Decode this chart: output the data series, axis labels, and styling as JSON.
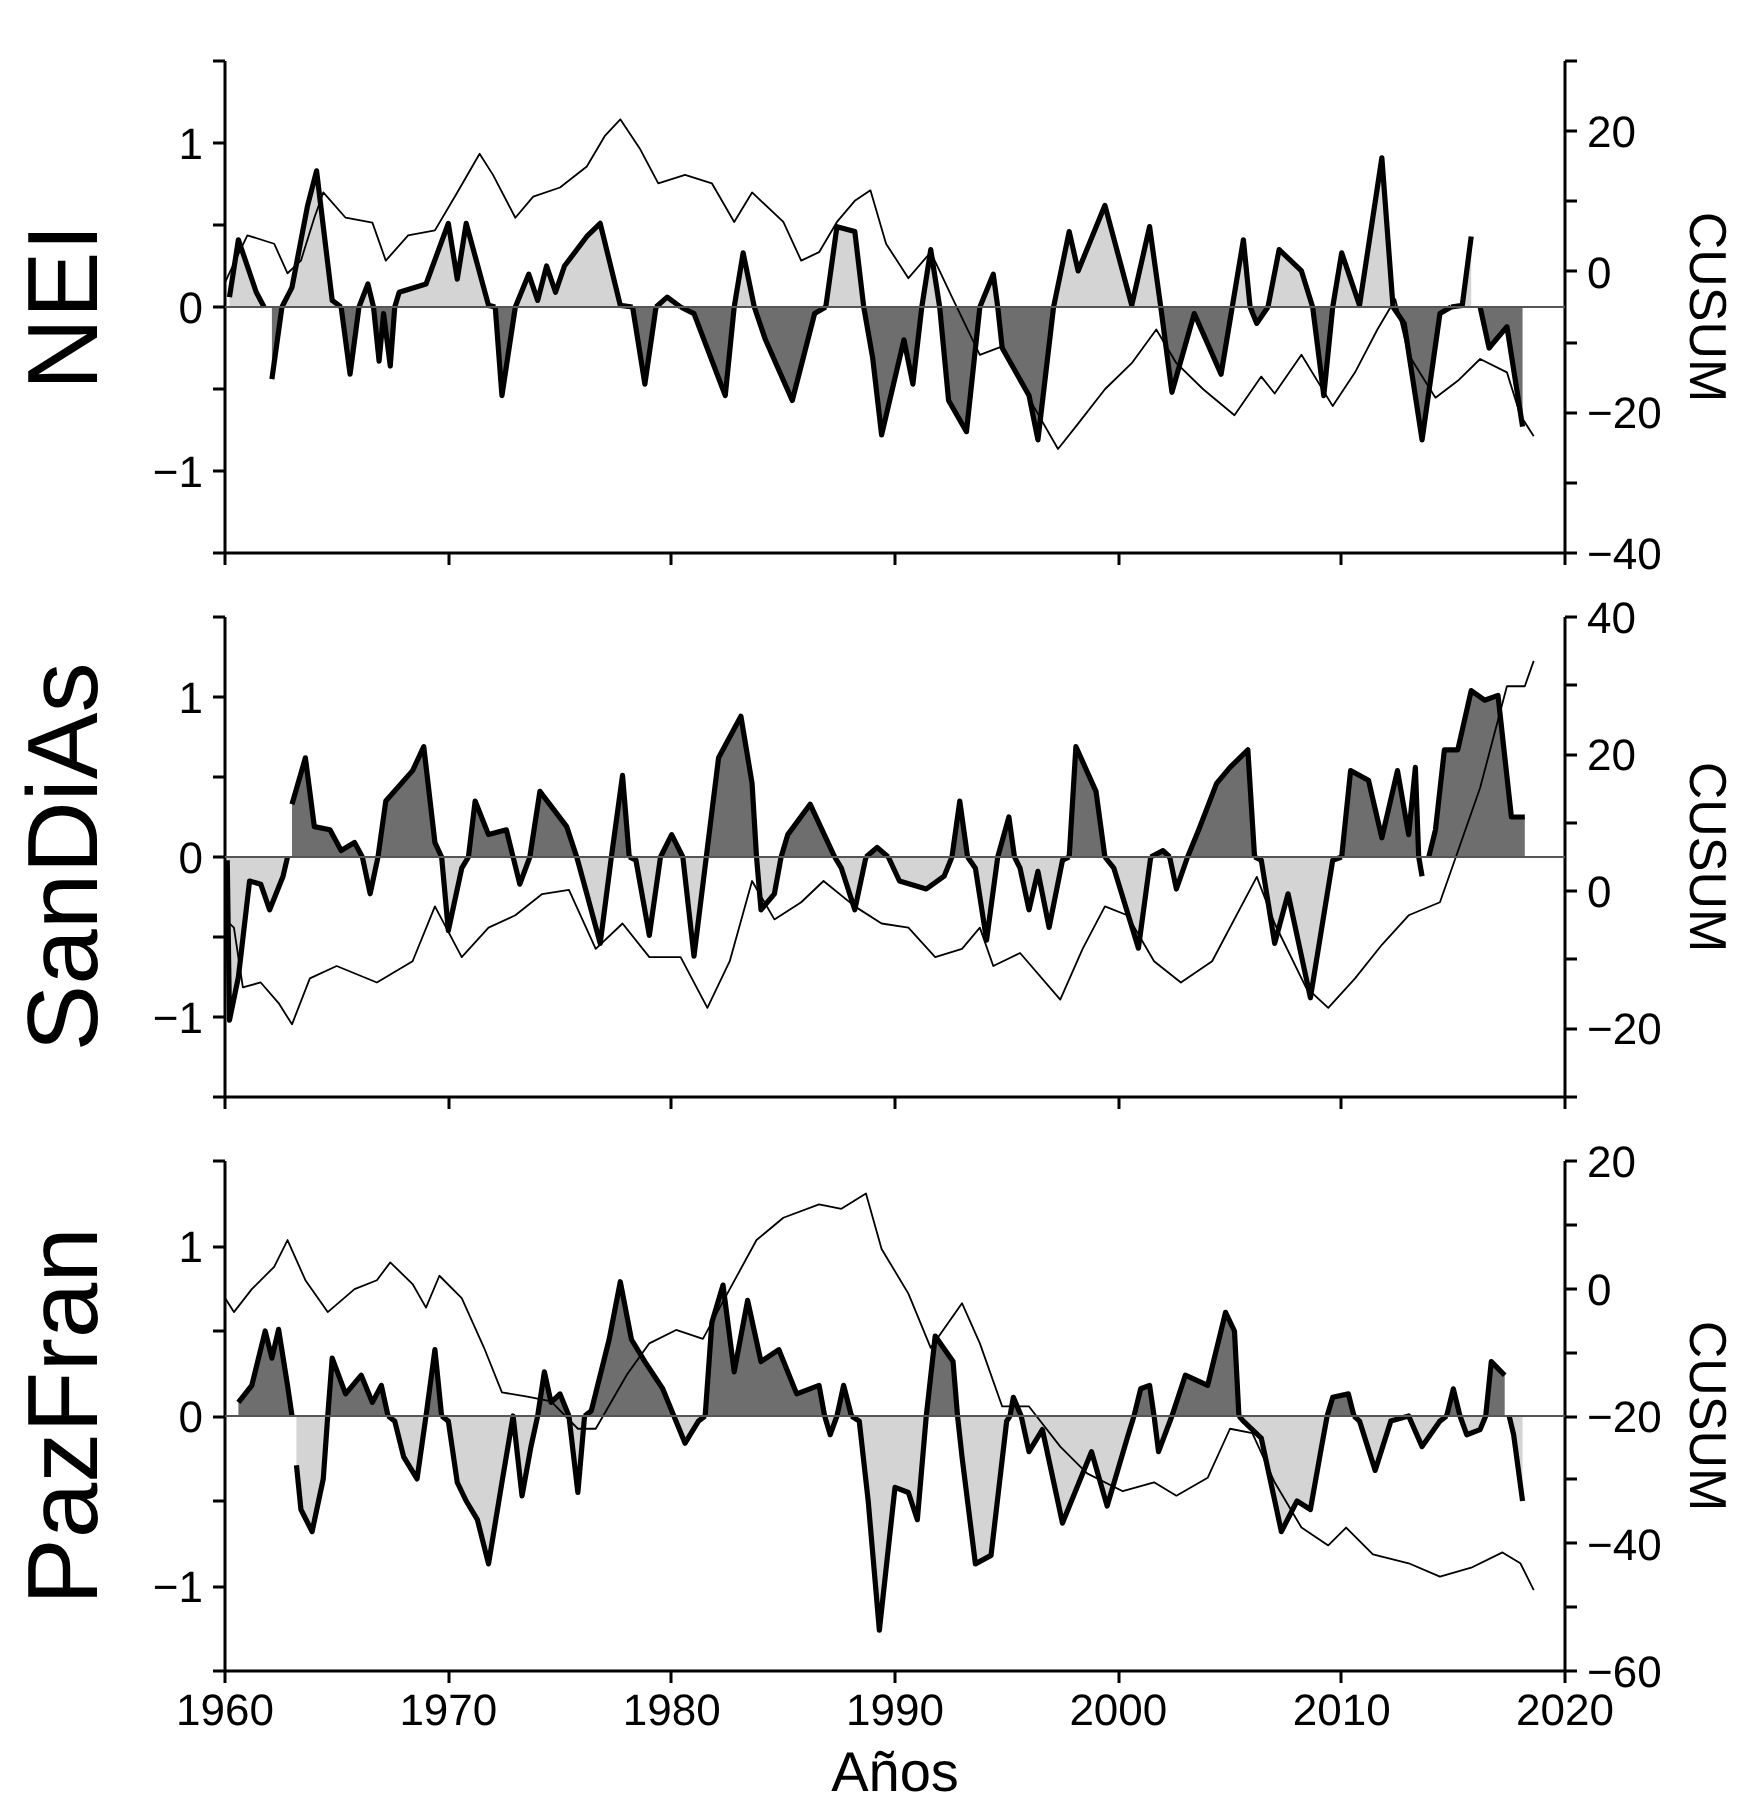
{
  "chart_data": [
    {
      "type": "area",
      "ylabel": "NEI",
      "y2label": "CUSUM",
      "xlim": [
        1960,
        2020
      ],
      "xticks": [
        1960,
        1970,
        1980,
        1990,
        2000,
        2010,
        2020
      ],
      "ylim": [
        -1.5,
        1.5
      ],
      "yticks": [
        {
          "value": -1.5,
          "label": null
        },
        -1,
        {
          "value": -0.5,
          "label": null
        },
        0,
        {
          "value": 0.5,
          "label": null
        },
        1,
        {
          "value": 1.5,
          "label": null
        }
      ],
      "y2lim": [
        -40,
        30
      ],
      "y2ticks": [
        -40,
        {
          "value": -30,
          "label": null
        },
        -20,
        {
          "value": -10,
          "label": null
        },
        0,
        {
          "value": 10,
          "label": null
        },
        20,
        {
          "value": 30,
          "label": null
        }
      ],
      "tick_labels": "y",
      "ref_lines": [
        {
          "axis": "y",
          "value": 0,
          "color": "#555555"
        }
      ],
      "series": [
        {
          "color": "#d4d4d4",
          "x": [
            1960.2,
            1960.6,
            1961.4,
            1962.1,
            1963.0,
            1963.7,
            1964.1,
            1964.8,
            1965.6,
            1966.4,
            1966.9,
            1967.1,
            1967.4,
            1967.8,
            1969.0,
            1970.0,
            1970.4,
            1970.8,
            1971.8,
            1972.4,
            1973.6,
            1974.0,
            1974.4,
            1974.8,
            1975.2,
            1976.2,
            1976.8,
            1977.7,
            1978.8,
            1979.8,
            1981.0,
            1982.4,
            1983.2,
            1984.2,
            1985.4,
            1986.4,
            1987.4,
            1988.2,
            1989.0,
            1989.4,
            1990.4,
            1990.8,
            1991.6,
            1992.4,
            1993.2,
            1994.4,
            1994.8,
            1996.0,
            1996.4,
            1997.8,
            1998.2,
            1999.4,
            2000.6,
            2001.4,
            2002.4,
            2003.4,
            2004.6,
            2005.6,
            2006.2,
            2007.2,
            2008.2,
            2009.2,
            2010.0,
            2010.8,
            2011.8,
            2012.8,
            2013.6,
            2014.4,
            2015.4,
            2015.8
          ],
          "values": [
            0.06,
            0.41,
            0.09,
            null,
            0.12,
            0.62,
            0.83,
            0.04,
            null,
            0.14,
            null,
            null,
            null,
            0.09,
            0.14,
            0.51,
            0.17,
            0.51,
            0.01,
            null,
            0.2,
            0.04,
            0.25,
            0.09,
            0.25,
            0.43,
            0.51,
            0.01,
            null,
            0.06,
            null,
            null,
            0.33,
            null,
            null,
            null,
            0.49,
            0.46,
            null,
            null,
            null,
            null,
            0.35,
            null,
            null,
            0.2,
            null,
            null,
            null,
            0.46,
            0.22,
            0.62,
            0.01,
            0.49,
            null,
            null,
            null,
            0.41,
            null,
            0.35,
            0.22,
            null,
            0.33,
            0.01,
            0.91,
            null,
            null,
            null,
            0.01,
            0.43
          ]
        },
        {
          "color": "#6e6e6e",
          "x": [
            1962.1,
            1963.0,
            1963.7,
            1964.1,
            1964.8,
            1965.6,
            1966.4,
            1966.9,
            1967.1,
            1967.4,
            1967.8,
            1969.0,
            1970.0,
            1970.4,
            1970.8,
            1971.8,
            1972.4,
            1973.6,
            1974.0,
            1974.4,
            1974.8,
            1975.2,
            1976.2,
            1976.8,
            1977.7,
            1978.8,
            1979.8,
            1981.0,
            1982.4,
            1983.2,
            1984.2,
            1985.4,
            1986.4,
            1987.4,
            1988.2,
            1989.0,
            1989.4,
            1990.4,
            1990.8,
            1991.6,
            1992.4,
            1993.2,
            1994.4,
            1994.8,
            1996.0,
            1996.4,
            1997.8,
            1998.2,
            1999.4,
            2000.6,
            2001.4,
            2002.4,
            2003.4,
            2004.6,
            2005.6,
            2006.2,
            2007.2,
            2008.2,
            2009.2,
            2010.0,
            2010.8,
            2011.8,
            2012.8,
            2013.6,
            2014.4,
            2015.4,
            2015.8,
            2016.6,
            2017.4,
            2018.1
          ],
          "values": [
            -0.44,
            null,
            null,
            null,
            null,
            -0.41,
            null,
            -0.33,
            -0.04,
            -0.36,
            null,
            null,
            null,
            null,
            null,
            null,
            -0.54,
            null,
            null,
            null,
            null,
            null,
            null,
            null,
            null,
            -0.47,
            null,
            -0.04,
            -0.54,
            null,
            -0.2,
            -0.57,
            -0.04,
            null,
            null,
            -0.31,
            -0.78,
            -0.2,
            -0.47,
            null,
            -0.57,
            -0.76,
            null,
            -0.25,
            -0.54,
            -0.81,
            null,
            null,
            null,
            null,
            null,
            -0.52,
            -0.04,
            -0.41,
            null,
            -0.1,
            null,
            null,
            -0.54,
            null,
            null,
            null,
            -0.1,
            -0.81,
            -0.04,
            null,
            null,
            -0.25,
            -0.12,
            -0.73
          ]
        },
        {
          "type": "line",
          "axis": "y2",
          "color": "#000000",
          "x": [
            1960.0,
            1961.0,
            1962.2,
            1962.8,
            1963.4,
            1964.0,
            1964.4,
            1965.4,
            1966.6,
            1967.2,
            1968.2,
            1969.4,
            1970.4,
            1971.4,
            1972.0,
            1973.0,
            1973.8,
            1975.0,
            1976.2,
            1977.0,
            1977.7,
            1978.6,
            1979.4,
            1980.6,
            1981.8,
            1982.8,
            1983.6,
            1985.0,
            1985.8,
            1986.6,
            1987.4,
            1988.2,
            1988.9,
            1989.6,
            1990.6,
            1991.6,
            1992.6,
            1993.8,
            1994.8,
            1996.2,
            1997.3,
            1998.2,
            1999.4,
            2000.6,
            2001.7,
            2002.6,
            2003.8,
            2005.2,
            2006.4,
            2007.0,
            2008.2,
            2009.6,
            2010.6,
            2011.6,
            2012.4,
            2013.0,
            2014.2,
            2015.2,
            2016.2,
            2017.4,
            2018.0,
            2018.6
          ],
          "values": [
            -1.5,
            5.2,
            4.0,
            -0.2,
            1.6,
            7.7,
            11.3,
            7.7,
            7.0,
            1.6,
            5.2,
            5.9,
            11.3,
            16.8,
            13.8,
            7.7,
            10.7,
            12.0,
            15.0,
            19.3,
            21.7,
            17.4,
            12.6,
            13.8,
            12.6,
            7.1,
            11.3,
            7.1,
            1.6,
            2.8,
            7.1,
            10.1,
            11.6,
            4.0,
            -0.9,
            2.8,
            -3.9,
            -11.8,
            -10.6,
            -19.1,
            -25.2,
            -21.6,
            -16.7,
            -13.0,
            -8.2,
            -13.0,
            -16.7,
            -20.4,
            -14.9,
            -17.3,
            -11.8,
            -19.1,
            -14.3,
            -8.2,
            -3.9,
            -11.8,
            -17.9,
            -15.5,
            -12.4,
            -14.3,
            -20.4,
            -23.4
          ]
        }
      ]
    },
    {
      "type": "area",
      "ylabel": "SanDiAs",
      "y2label": "CUSUM",
      "xlim": [
        1960,
        2020
      ],
      "xticks": [
        1960,
        1970,
        1980,
        1990,
        2000,
        2010,
        2020
      ],
      "ylim": [
        -1.5,
        1.5
      ],
      "yticks": [
        {
          "value": -1.5,
          "label": null
        },
        -1,
        {
          "value": -0.5,
          "label": null
        },
        0,
        {
          "value": 0.5,
          "label": null
        },
        1,
        {
          "value": 1.5,
          "label": null
        }
      ],
      "y2lim": [
        -30,
        40
      ],
      "y2ticks": [
        {
          "value": -30,
          "label": null
        },
        -20,
        {
          "value": -10,
          "label": null
        },
        0,
        {
          "value": 10,
          "label": null
        },
        20,
        {
          "value": 30,
          "label": null
        },
        40
      ],
      "tick_labels": "y",
      "ref_lines": [
        {
          "axis": "y",
          "value": 0,
          "color": "#555555"
        }
      ],
      "series": [
        {
          "color": "#6e6e6e",
          "x": [
            1963.0,
            1963.6,
            1964.0,
            1964.7,
            1965.2,
            1965.8,
            1966.5,
            1967.2,
            1968.4,
            1968.9,
            1969.4,
            1970.0,
            1970.6,
            1971.2,
            1971.8,
            1972.6,
            1973.2,
            1974.1,
            1975.3,
            1976.2,
            1976.8,
            1977.8,
            1978.4,
            1979.0,
            1980.0,
            1981.0,
            1982.1,
            1983.1,
            1983.6,
            1984.0,
            1984.6,
            1985.2,
            1986.2,
            1987.0,
            1987.6,
            1988.2,
            1989.2,
            1990.2,
            1991.4,
            1992.2,
            1992.9,
            1993.6,
            1994.1,
            1995.1,
            1995.6,
            1996.0,
            1996.4,
            1996.9,
            1997.5,
            1998.1,
            1999.0,
            1999.8,
            2000.9,
            2002.0,
            2002.6,
            2003.6,
            2004.4,
            2005.0,
            2005.8,
            2006.4,
            2007.0,
            2007.6,
            2008.6,
            2009.6,
            2010.4,
            2011.2,
            2011.8,
            2012.5,
            2013.0,
            2013.3,
            2013.6,
            2014.2,
            2014.6,
            2015.2,
            2015.8,
            2016.4,
            2017.0,
            2017.6,
            2018.2
          ],
          "values": [
            0.33,
            0.62,
            0.19,
            0.17,
            0.04,
            0.09,
            null,
            0.35,
            0.54,
            0.69,
            0.09,
            null,
            null,
            0.35,
            0.14,
            0.17,
            null,
            0.41,
            0.19,
            null,
            null,
            0.51,
            null,
            null,
            0.14,
            null,
            0.62,
            0.88,
            0.46,
            null,
            null,
            0.14,
            0.33,
            0.09,
            null,
            null,
            0.06,
            null,
            null,
            null,
            0.35,
            null,
            null,
            0.25,
            null,
            null,
            null,
            null,
            null,
            0.69,
            0.41,
            null,
            null,
            0.04,
            null,
            0.17,
            0.46,
            0.56,
            0.67,
            null,
            null,
            null,
            null,
            null,
            0.54,
            0.48,
            0.12,
            0.54,
            0.14,
            0.56,
            null,
            0.17,
            0.67,
            0.67,
            1.04,
            0.98,
            1.01,
            0.25,
            0.25
          ]
        },
        {
          "color": "#d4d4d4",
          "x": [
            1960.1,
            1960.2,
            1960.6,
            1961.1,
            1961.6,
            1962.0,
            1962.6,
            1963.0,
            1963.6,
            1964.0,
            1964.7,
            1965.2,
            1965.8,
            1966.5,
            1967.2,
            1968.4,
            1968.9,
            1969.4,
            1970.0,
            1970.6,
            1971.2,
            1971.8,
            1972.6,
            1973.2,
            1974.1,
            1975.3,
            1976.2,
            1976.8,
            1977.8,
            1978.4,
            1979.0,
            1980.0,
            1981.0,
            1982.1,
            1983.1,
            1983.6,
            1984.0,
            1984.6,
            1985.2,
            1986.2,
            1987.0,
            1987.6,
            1988.2,
            1989.2,
            1990.2,
            1991.4,
            1992.2,
            1992.9,
            1993.6,
            1994.1,
            1995.1,
            1995.6,
            1996.0,
            1996.4,
            1996.9,
            1997.5,
            1998.1,
            1999.0,
            1999.8,
            2000.9,
            2002.0,
            2002.6,
            2003.6,
            2004.4,
            2005.0,
            2005.8,
            2006.4,
            2007.0,
            2007.6,
            2008.6,
            2009.6,
            2010.4,
            2011.2,
            2011.8,
            2012.5,
            2013.0,
            2013.3,
            2013.6
          ],
          "values": [
            -0.02,
            -1.02,
            -0.75,
            -0.15,
            -0.17,
            -0.33,
            -0.12,
            null,
            null,
            null,
            null,
            null,
            null,
            -0.23,
            null,
            null,
            null,
            null,
            -0.46,
            -0.07,
            null,
            null,
            null,
            -0.17,
            null,
            null,
            -0.23,
            -0.54,
            null,
            -0.02,
            -0.49,
            null,
            -0.62,
            null,
            null,
            null,
            -0.33,
            -0.23,
            null,
            null,
            null,
            -0.07,
            -0.33,
            null,
            -0.15,
            -0.2,
            -0.12,
            null,
            -0.07,
            -0.52,
            null,
            -0.07,
            -0.33,
            -0.09,
            -0.44,
            -0.02,
            null,
            null,
            -0.07,
            -0.57,
            null,
            -0.2,
            null,
            null,
            null,
            null,
            -0.02,
            -0.54,
            -0.23,
            -0.88,
            -0.02,
            null,
            null,
            null,
            null,
            null,
            null,
            -0.12
          ]
        },
        {
          "type": "line",
          "axis": "y2",
          "color": "#000000",
          "x": [
            1960.0,
            1960.4,
            1960.8,
            1961.6,
            1962.4,
            1963.0,
            1963.8,
            1965.0,
            1966.8,
            1968.4,
            1969.4,
            1970.6,
            1971.8,
            1973.0,
            1974.2,
            1975.4,
            1976.6,
            1977.8,
            1979.0,
            1980.4,
            1981.6,
            1982.6,
            1983.6,
            1984.6,
            1985.8,
            1986.8,
            1988.2,
            1989.4,
            1990.6,
            1991.8,
            1993.0,
            1993.8,
            1994.4,
            1995.6,
            1997.4,
            1998.4,
            1999.4,
            2000.4,
            2001.6,
            2002.8,
            2004.2,
            2006.2,
            2007.0,
            2008.4,
            2009.4,
            2010.6,
            2011.8,
            2013.0,
            2014.4,
            2015.2,
            2016.2,
            2017.4,
            2018.2,
            2018.6
          ],
          "values": [
            -4.1,
            -5.3,
            -14.0,
            -13.3,
            -16.3,
            -19.4,
            -12.7,
            -10.9,
            -13.3,
            -10.2,
            -2.2,
            -9.6,
            -5.3,
            -3.5,
            -0.4,
            0.2,
            -8.4,
            -4.7,
            -9.6,
            -9.6,
            -17.0,
            -10.2,
            1.5,
            -4.1,
            -1.6,
            1.5,
            -2.2,
            -4.7,
            -5.3,
            -9.6,
            -8.4,
            -5.3,
            -10.9,
            -9.0,
            -15.8,
            -8.4,
            -2.2,
            -3.5,
            -10.2,
            -13.3,
            -10.2,
            2.1,
            -4.7,
            -14.0,
            -17.0,
            -12.7,
            -7.8,
            -3.5,
            -1.6,
            5.8,
            15.1,
            29.9,
            29.9,
            33.6
          ]
        }
      ]
    },
    {
      "type": "area",
      "ylabel": "PazFran",
      "y2label": "CUSUM",
      "xlabel": "Años",
      "xlim": [
        1960,
        2020
      ],
      "xticks": [
        1960,
        1970,
        1980,
        1990,
        2000,
        2010,
        2020
      ],
      "ylim": [
        -1.5,
        1.5
      ],
      "yticks": [
        {
          "value": -1.5,
          "label": null
        },
        -1,
        {
          "value": -0.5,
          "label": null
        },
        0,
        {
          "value": 0.5,
          "label": null
        },
        1,
        {
          "value": 1.5,
          "label": null
        }
      ],
      "y2lim": [
        -60,
        20
      ],
      "y2ticks": [
        -60,
        {
          "value": -50,
          "label": null
        },
        -40,
        {
          "value": -30,
          "label": null
        },
        -20,
        {
          "value": -10,
          "label": null
        },
        0,
        {
          "value": 10,
          "label": null
        },
        20
      ],
      "ref_lines": [
        {
          "axis": "y",
          "value": 0,
          "color": "#555555"
        }
      ],
      "series": [
        {
          "color": "#6e6e6e",
          "x": [
            1960.6,
            1961.2,
            1961.8,
            1962.1,
            1962.4,
            1962.8,
            1963.2,
            1963.4,
            1963.9,
            1964.4,
            1964.8,
            1965.4,
            1966.1,
            1966.6,
            1967.0,
            1967.6,
            1968.0,
            1968.6,
            1969.4,
            1970.0,
            1970.4,
            1970.8,
            1971.3,
            1971.8,
            1972.4,
            1972.9,
            1973.3,
            1973.7,
            1974.3,
            1974.6,
            1975.0,
            1975.8,
            1976.4,
            1977.2,
            1977.7,
            1978.2,
            1978.8,
            1979.6,
            1980.6,
            1981.2,
            1981.8,
            1982.3,
            1982.8,
            1983.4,
            1984.0,
            1984.8,
            1985.6,
            1986.6,
            1987.1,
            1987.7,
            1988.4,
            1988.8,
            1989.3,
            1990.0,
            1990.6,
            1991.0,
            1991.8,
            1992.6,
            1993.0,
            1993.6,
            1994.3,
            1995.0,
            1995.3,
            1996.0,
            1996.6,
            1997.5,
            1998.8,
            1999.5,
            2000.4,
            2001.0,
            2001.4,
            2001.8,
            2003.0,
            2004.0,
            2004.8,
            2005.2,
            2005.6,
            2006.4,
            2007.3,
            2008.0,
            2008.6,
            2009.1,
            2009.6,
            2010.3,
            2010.8,
            2011.5,
            2012.2,
            2013.0,
            2013.6,
            2014.4,
            2015.0,
            2015.6,
            2016.2,
            2016.7,
            2017.3
          ],
          "values": [
            0.08,
            0.18,
            0.5,
            0.34,
            0.51,
            0.18,
            null,
            null,
            null,
            null,
            0.34,
            0.13,
            0.24,
            0.08,
            0.18,
            null,
            null,
            null,
            0.39,
            null,
            null,
            null,
            null,
            null,
            null,
            null,
            null,
            null,
            0.26,
            0.08,
            0.13,
            null,
            0.03,
            0.45,
            0.79,
            0.45,
            0.32,
            0.16,
            null,
            null,
            0.55,
            0.77,
            0.26,
            0.68,
            0.32,
            0.39,
            0.13,
            0.18,
            null,
            0.18,
            null,
            null,
            null,
            null,
            null,
            null,
            0.47,
            0.32,
            null,
            null,
            null,
            null,
            0.11,
            null,
            null,
            null,
            null,
            null,
            null,
            0.16,
            0.18,
            null,
            0.24,
            0.18,
            0.61,
            0.5,
            null,
            null,
            null,
            null,
            null,
            null,
            0.11,
            0.13,
            null,
            null,
            null,
            null,
            null,
            null,
            0.16,
            null,
            null,
            0.32,
            0.24
          ]
        },
        {
          "color": "#d4d4d4",
          "x": [
            1963.2,
            1963.4,
            1963.9,
            1964.4,
            1964.8,
            1965.4,
            1966.1,
            1966.6,
            1967.0,
            1967.6,
            1968.0,
            1968.6,
            1969.4,
            1970.0,
            1970.4,
            1970.8,
            1971.3,
            1971.8,
            1972.4,
            1972.9,
            1973.3,
            1973.7,
            1974.3,
            1974.6,
            1975.0,
            1975.8,
            1976.4,
            1977.2,
            1977.7,
            1978.2,
            1978.8,
            1979.6,
            1980.6,
            1981.2,
            1981.8,
            1982.3,
            1982.8,
            1983.4,
            1984.0,
            1984.8,
            1985.6,
            1986.6,
            1987.1,
            1987.7,
            1988.4,
            1988.8,
            1989.3,
            1990.0,
            1990.6,
            1991.0,
            1991.8,
            1992.6,
            1993.0,
            1993.6,
            1994.3,
            1995.0,
            1995.3,
            1996.0,
            1996.6,
            1997.5,
            1998.8,
            1999.5,
            2000.4,
            2001.0,
            2001.4,
            2001.8,
            2003.0,
            2004.0,
            2004.8,
            2005.2,
            2005.6,
            2006.4,
            2007.3,
            2008.0,
            2008.6,
            2009.1,
            2009.6,
            2010.3,
            2010.8,
            2011.5,
            2012.2,
            2013.0,
            2013.6,
            2014.4,
            2015.0,
            2015.6,
            2016.2,
            2016.7,
            2017.3,
            2017.7,
            2018.1
          ],
          "values": [
            -0.29,
            -0.55,
            -0.68,
            -0.37,
            null,
            null,
            null,
            null,
            null,
            -0.03,
            -0.24,
            -0.37,
            null,
            -0.03,
            -0.39,
            -0.5,
            -0.61,
            -0.87,
            -0.39,
            0.0,
            -0.47,
            -0.18,
            null,
            null,
            null,
            -0.45,
            null,
            null,
            null,
            null,
            null,
            null,
            -0.16,
            -0.03,
            null,
            null,
            null,
            null,
            null,
            null,
            null,
            null,
            -0.11,
            null,
            -0.03,
            -0.5,
            -1.26,
            -0.42,
            -0.45,
            -0.61,
            null,
            null,
            -0.24,
            -0.87,
            -0.82,
            -0.03,
            null,
            -0.21,
            -0.08,
            -0.63,
            -0.21,
            -0.53,
            -0.13,
            null,
            null,
            -0.21,
            null,
            null,
            null,
            null,
            -0.03,
            -0.13,
            -0.68,
            -0.5,
            -0.55,
            -0.18,
            null,
            null,
            -0.03,
            -0.32,
            -0.03,
            0.0,
            -0.18,
            -0.03,
            null,
            -0.11,
            -0.08,
            null,
            null,
            -0.11,
            -0.5
          ]
        },
        {
          "type": "line",
          "axis": "y2",
          "color": "#000000",
          "x": [
            1960.0,
            1960.4,
            1961.2,
            1962.2,
            1962.8,
            1963.6,
            1964.6,
            1965.8,
            1966.8,
            1967.4,
            1968.4,
            1969.0,
            1969.6,
            1970.6,
            1971.6,
            1972.4,
            1973.6,
            1974.6,
            1975.8,
            1976.6,
            1978.0,
            1979.0,
            1980.2,
            1981.4,
            1982.6,
            1983.8,
            1985.0,
            1986.6,
            1987.6,
            1988.7,
            1989.4,
            1990.6,
            1991.6,
            1993.0,
            1993.8,
            1994.8,
            1996.0,
            1997.4,
            1998.6,
            2000.2,
            2001.6,
            2002.6,
            2004.0,
            2005.0,
            2006.0,
            2007.0,
            2008.2,
            2009.4,
            2010.2,
            2011.4,
            2013.0,
            2014.4,
            2015.8,
            2017.2,
            2018.0,
            2018.6
          ],
          "values": [
            -1.5,
            -3.7,
            -0.1,
            3.4,
            7.6,
            1.3,
            -3.7,
            -0.1,
            1.3,
            4.1,
            0.7,
            -3.0,
            2.0,
            -1.5,
            -9.3,
            -16.3,
            -17.0,
            -17.7,
            -22.0,
            -22.0,
            -13.5,
            -8.6,
            -6.5,
            -7.9,
            -0.1,
            7.6,
            11.1,
            13.2,
            12.5,
            14.9,
            6.2,
            -0.8,
            -9.3,
            -2.3,
            -8.6,
            -18.5,
            -18.5,
            -24.8,
            -29.0,
            -31.8,
            -30.4,
            -32.5,
            -29.7,
            -22.0,
            -22.7,
            -30.4,
            -37.5,
            -40.3,
            -37.5,
            -41.7,
            -43.1,
            -45.2,
            -43.8,
            -41.4,
            -43.1,
            -47.3
          ]
        }
      ]
    }
  ]
}
